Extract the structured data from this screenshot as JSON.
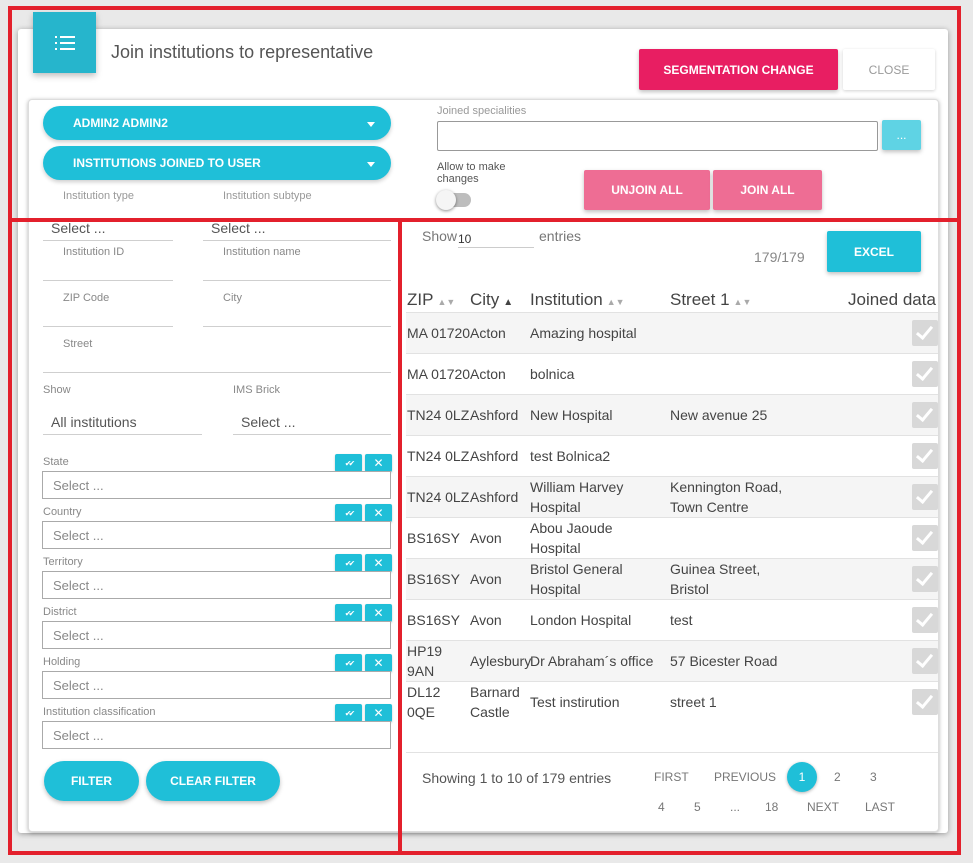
{
  "header": {
    "title": "Join institutions to representative",
    "segmentation_button": "SEGMENTATION CHANGE",
    "close_button": "CLOSE"
  },
  "top": {
    "user_dropdown": "ADMIN2 ADMIN2",
    "mode_dropdown": "INSTITUTIONS JOINED TO USER",
    "joined_specialities_label": "Joined specialities",
    "dots_button": "...",
    "allow_changes_label": "Allow to make changes",
    "allow_changes_enabled": false,
    "unjoin_all": "UNJOIN ALL",
    "join_all": "JOIN ALL"
  },
  "filters": {
    "institution_type_label": "Institution type",
    "institution_subtype_label": "Institution subtype",
    "institution_type_value": "Select ...",
    "institution_subtype_value": "Select ...",
    "institution_id_label": "Institution ID",
    "institution_name_label": "Institution name",
    "zip_label": "ZIP Code",
    "city_label": "City",
    "street_label": "Street",
    "show_label": "Show",
    "show_value": "All institutions",
    "ims_brick_label": "IMS Brick",
    "ims_brick_value": "Select ...",
    "multi_selects": [
      {
        "label": "State",
        "value": "Select ..."
      },
      {
        "label": "Country",
        "value": "Select ..."
      },
      {
        "label": "Territory",
        "value": "Select ..."
      },
      {
        "label": "District",
        "value": "Select ..."
      },
      {
        "label": "Holding",
        "value": "Select ..."
      },
      {
        "label": "Institution classification",
        "value": "Select ..."
      }
    ],
    "filter_button": "FILTER",
    "clear_filter_button": "CLEAR FILTER"
  },
  "table": {
    "show_label": "Show",
    "entries_value": "10",
    "entries_label": "entries",
    "count": "179/179",
    "excel_button": "EXCEL",
    "columns": [
      "ZIP",
      "City",
      "Institution",
      "Street 1",
      "Joined data"
    ],
    "rows": [
      {
        "zip": "MA 01720",
        "city": "Acton",
        "institution": "Amazing hospital",
        "street": "",
        "joined": true
      },
      {
        "zip": "MA 01720",
        "city": "Acton",
        "institution": "bolnica",
        "street": "",
        "joined": true
      },
      {
        "zip": "TN24 0LZ",
        "city": "Ashford",
        "institution": "New Hospital",
        "street": "New avenue 25",
        "joined": true
      },
      {
        "zip": "TN24 0LZ",
        "city": "Ashford",
        "institution": "test Bolnica2",
        "street": "",
        "joined": true
      },
      {
        "zip": "TN24 0LZ",
        "city": "Ashford",
        "institution": "William Harvey Hospital",
        "street": "Kennington Road, Town Centre",
        "joined": true
      },
      {
        "zip": "BS16SY",
        "city": "Avon",
        "institution": "Abou Jaoude Hospital",
        "street": "",
        "joined": true
      },
      {
        "zip": "BS16SY",
        "city": "Avon",
        "institution": "Bristol General Hospital",
        "street": "Guinea Street, Bristol",
        "joined": true
      },
      {
        "zip": "BS16SY",
        "city": "Avon",
        "institution": "London Hospital",
        "street": "test",
        "joined": true
      },
      {
        "zip": "HP19 9AN",
        "city": "Aylesbury",
        "institution": "Dr Abraham´s office",
        "street": "57 Bicester Road",
        "joined": true
      },
      {
        "zip": "DL12 0QE",
        "city": "Barnard Castle",
        "institution": "Test instirution",
        "street": "street 1",
        "joined": true
      }
    ]
  },
  "pagination": {
    "info": "Showing 1 to 10 of 179 entries",
    "first": "FIRST",
    "previous": "PREVIOUS",
    "pages_row1": [
      "1",
      "2",
      "3"
    ],
    "pages_row2": [
      "4",
      "5",
      "...",
      "18"
    ],
    "next": "NEXT",
    "last": "LAST",
    "current_page": 1
  },
  "colors": {
    "accent": "#1fbfd8",
    "segmentation": "#e81e62",
    "join_buttons": "#ee6d94",
    "annotation_border": "#e3202c"
  },
  "icons": {
    "header": "list-icon",
    "select_all": "double-check-icon",
    "clear": "close-icon",
    "joined": "check-icon"
  }
}
